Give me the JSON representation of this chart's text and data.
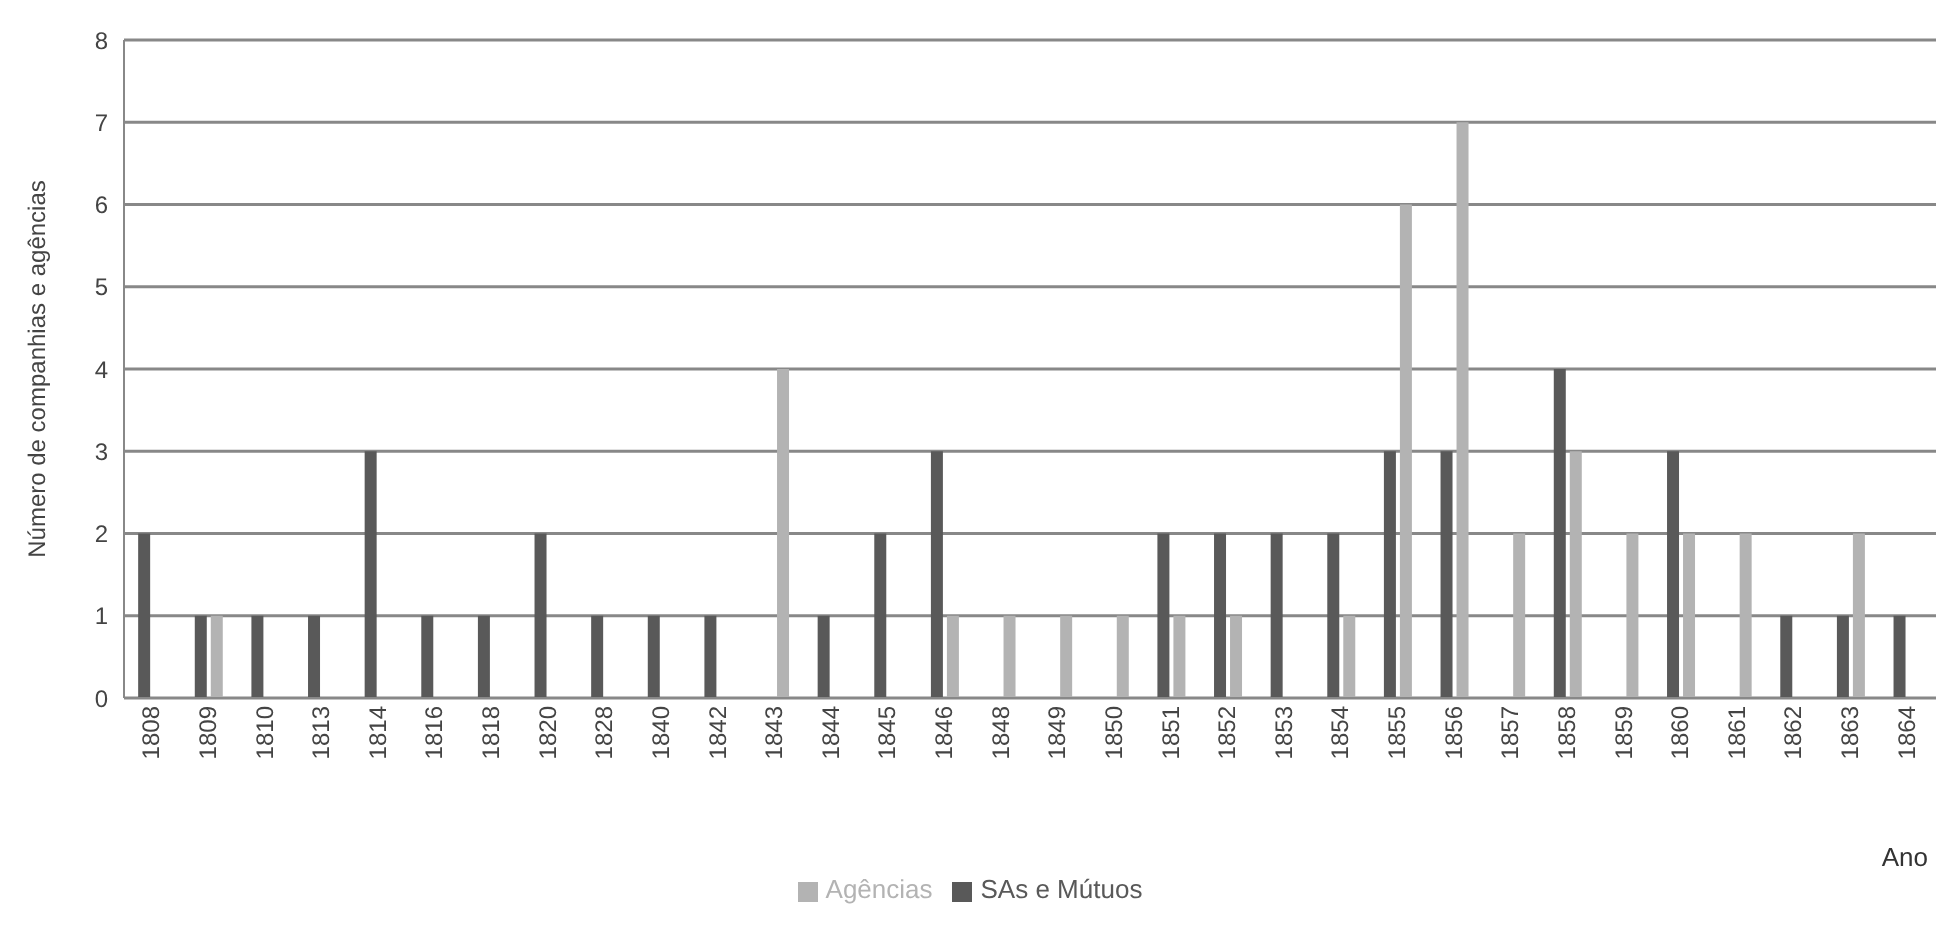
{
  "chart_data": {
    "type": "bar",
    "ylabel": "Número de companhias e agências",
    "xlabel": "Ano",
    "categories": [
      "1808",
      "1809",
      "1810",
      "1813",
      "1814",
      "1816",
      "1818",
      "1820",
      "1828",
      "1840",
      "1842",
      "1843",
      "1844",
      "1845",
      "1846",
      "1848",
      "1849",
      "1850",
      "1851",
      "1852",
      "1853",
      "1854",
      "1855",
      "1856",
      "1857",
      "1858",
      "1859",
      "1860",
      "1861",
      "1862",
      "1863",
      "1864"
    ],
    "series": [
      {
        "name": "SAs e Mútuos",
        "color": "#595959",
        "values": [
          2,
          1,
          1,
          1,
          3,
          1,
          1,
          2,
          1,
          1,
          1,
          0,
          1,
          2,
          3,
          0,
          0,
          0,
          2,
          2,
          2,
          2,
          3,
          3,
          0,
          4,
          0,
          3,
          0,
          1,
          1,
          1
        ]
      },
      {
        "name": "Agências",
        "color": "#b3b3b3",
        "values": [
          0,
          1,
          0,
          0,
          0,
          0,
          0,
          0,
          0,
          0,
          0,
          4,
          0,
          0,
          1,
          1,
          1,
          1,
          1,
          1,
          0,
          1,
          6,
          7,
          2,
          3,
          2,
          2,
          2,
          0,
          2,
          0
        ]
      }
    ],
    "ylim": [
      0,
      8
    ],
    "yticks": [
      0,
      1,
      2,
      3,
      4,
      5,
      6,
      7,
      8
    ],
    "grid": "y",
    "legend": "bottom"
  }
}
